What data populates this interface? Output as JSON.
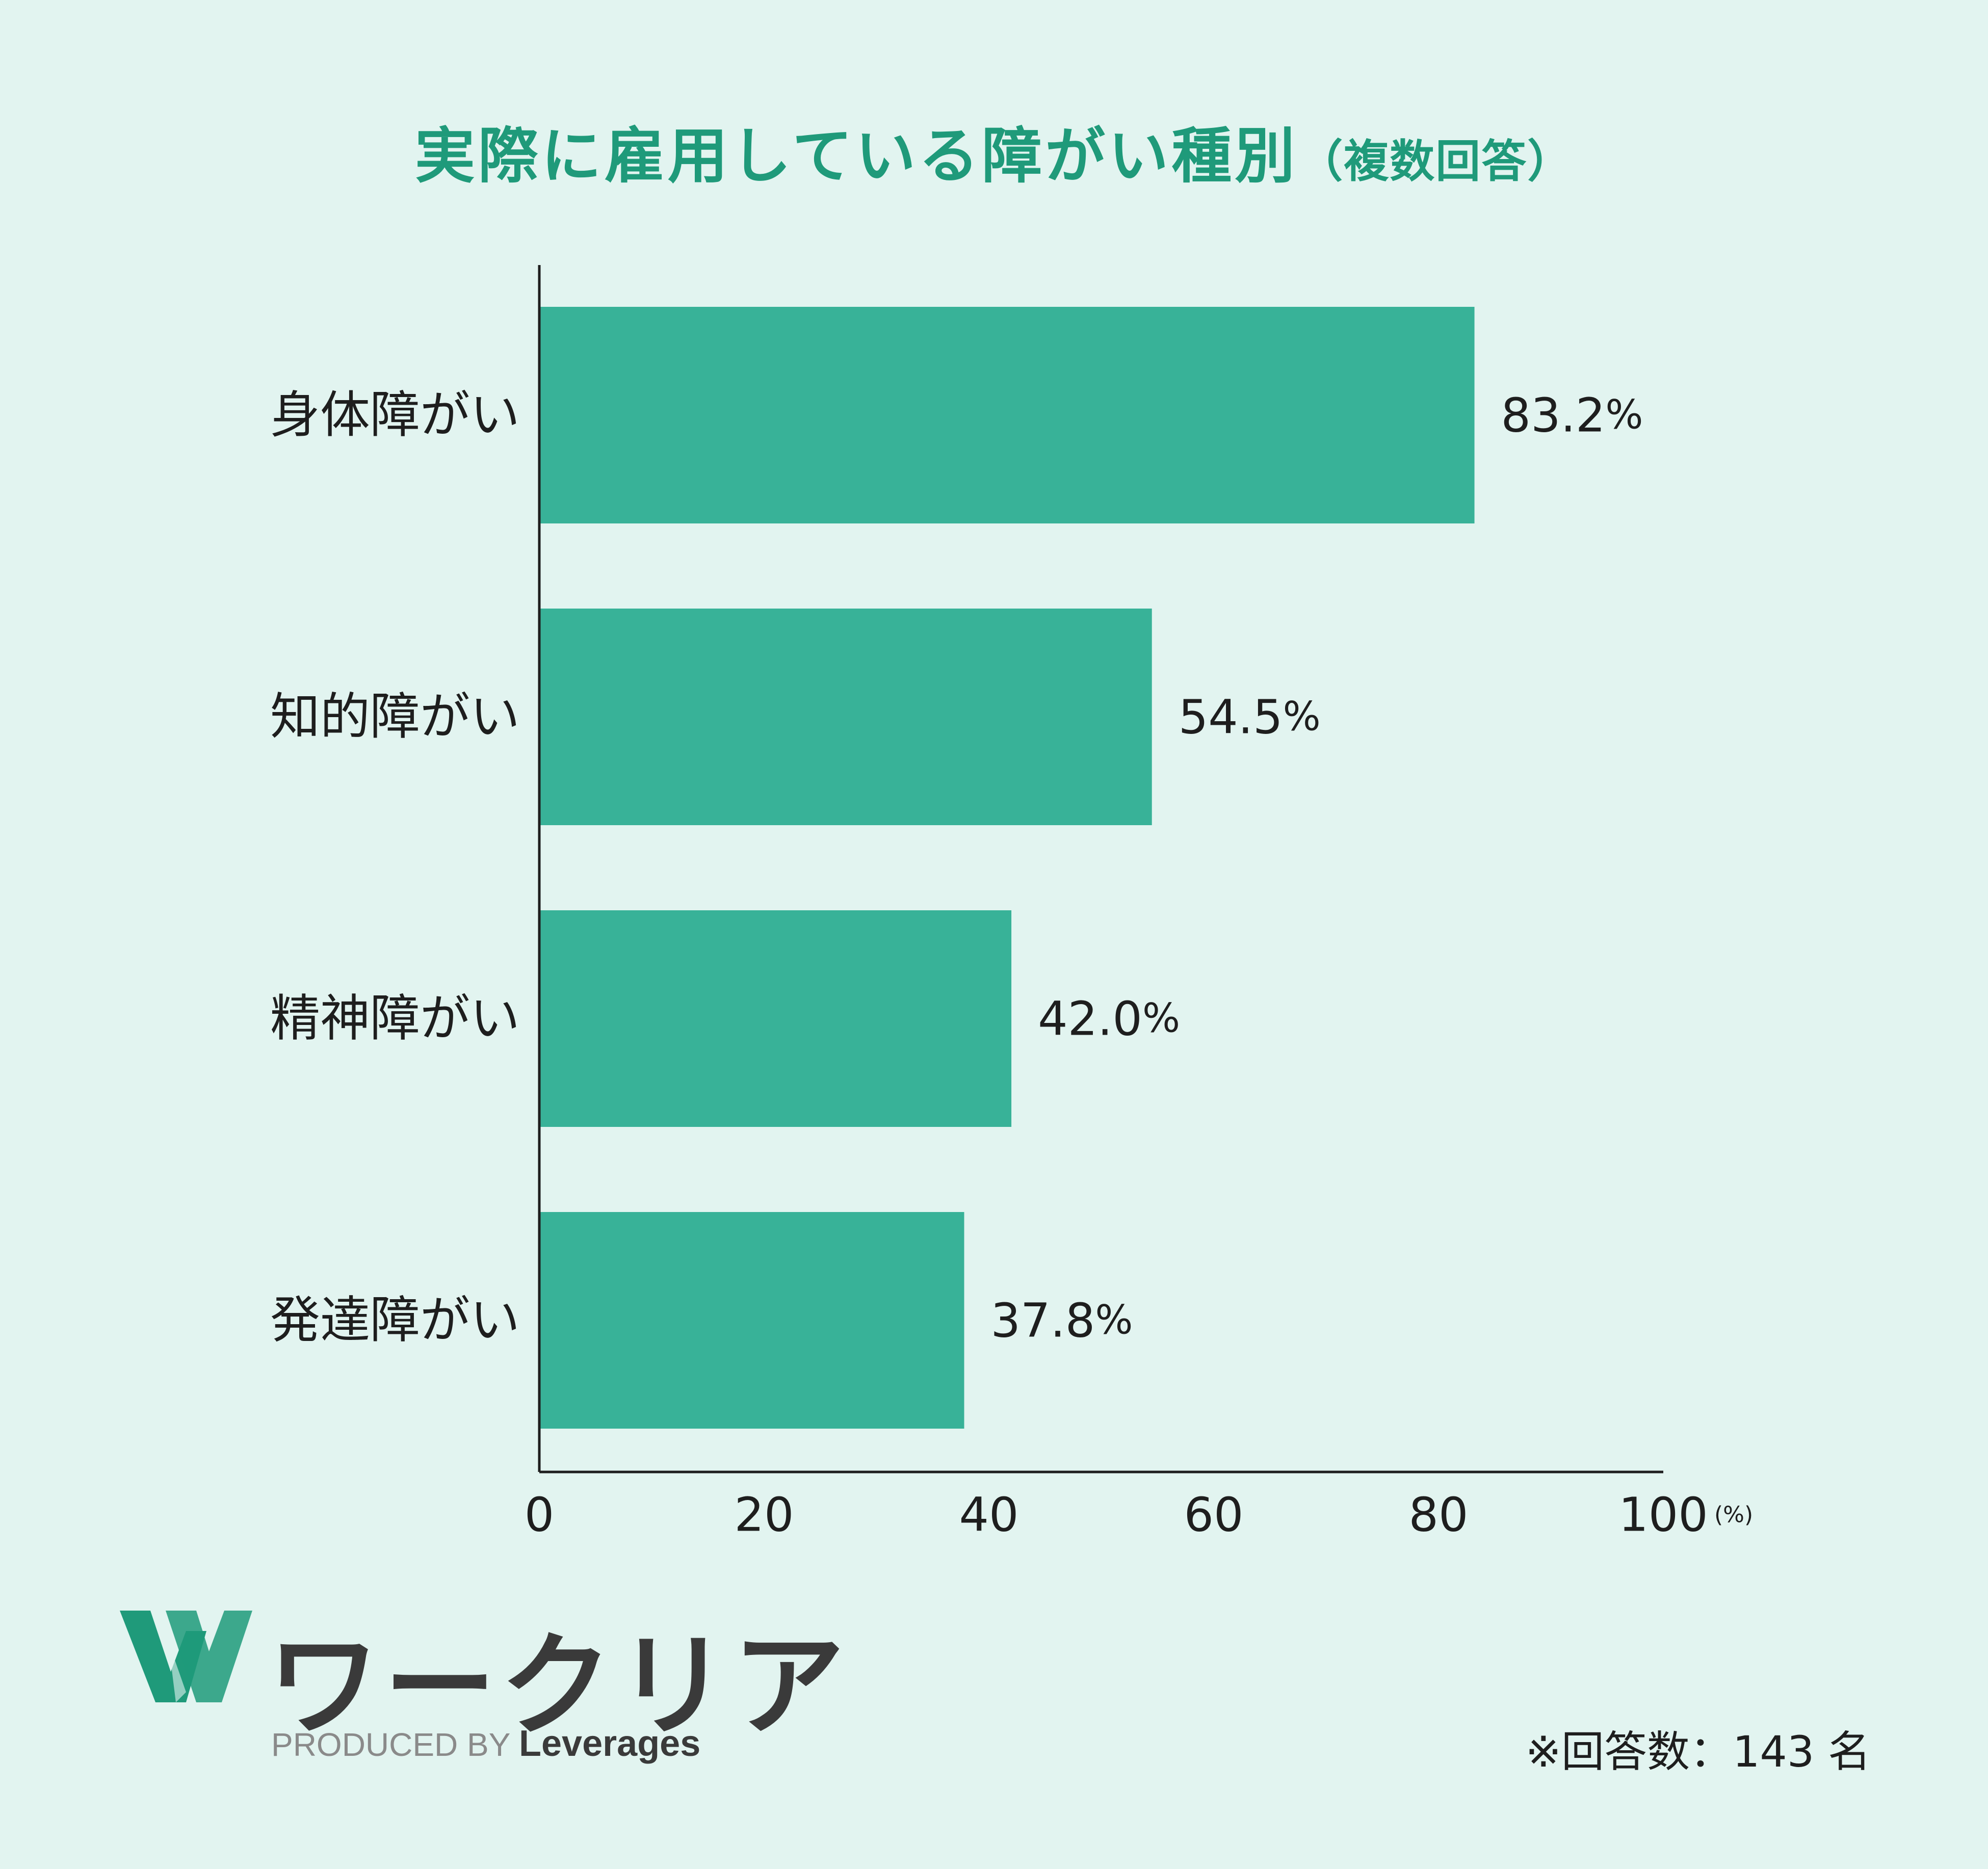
{
  "title": {
    "main": "実際に雇用している障がい種別",
    "sub": "（複数回答）"
  },
  "chart_data": {
    "type": "bar",
    "orientation": "horizontal",
    "categories": [
      "身体障がい",
      "知的障がい",
      "精神障がい",
      "発達障がい"
    ],
    "values": [
      83.2,
      54.5,
      42.0,
      37.8
    ],
    "value_labels": [
      "83.2",
      "54.5",
      "42.0",
      "37.8"
    ],
    "value_suffix": "%",
    "x_ticks": [
      "0",
      "20",
      "40",
      "60",
      "80",
      "100"
    ],
    "xlim": [
      0,
      100
    ],
    "x_unit": "(%)",
    "bar_color": "#38b298",
    "grid": false
  },
  "logo": {
    "name": "ワークリア",
    "produced_by": "PRODUCED BY",
    "brand": "Leverages",
    "icon": "workclear-w-logo-icon",
    "color": "#1f9a7a"
  },
  "footnote": "※回答数：143 名"
}
